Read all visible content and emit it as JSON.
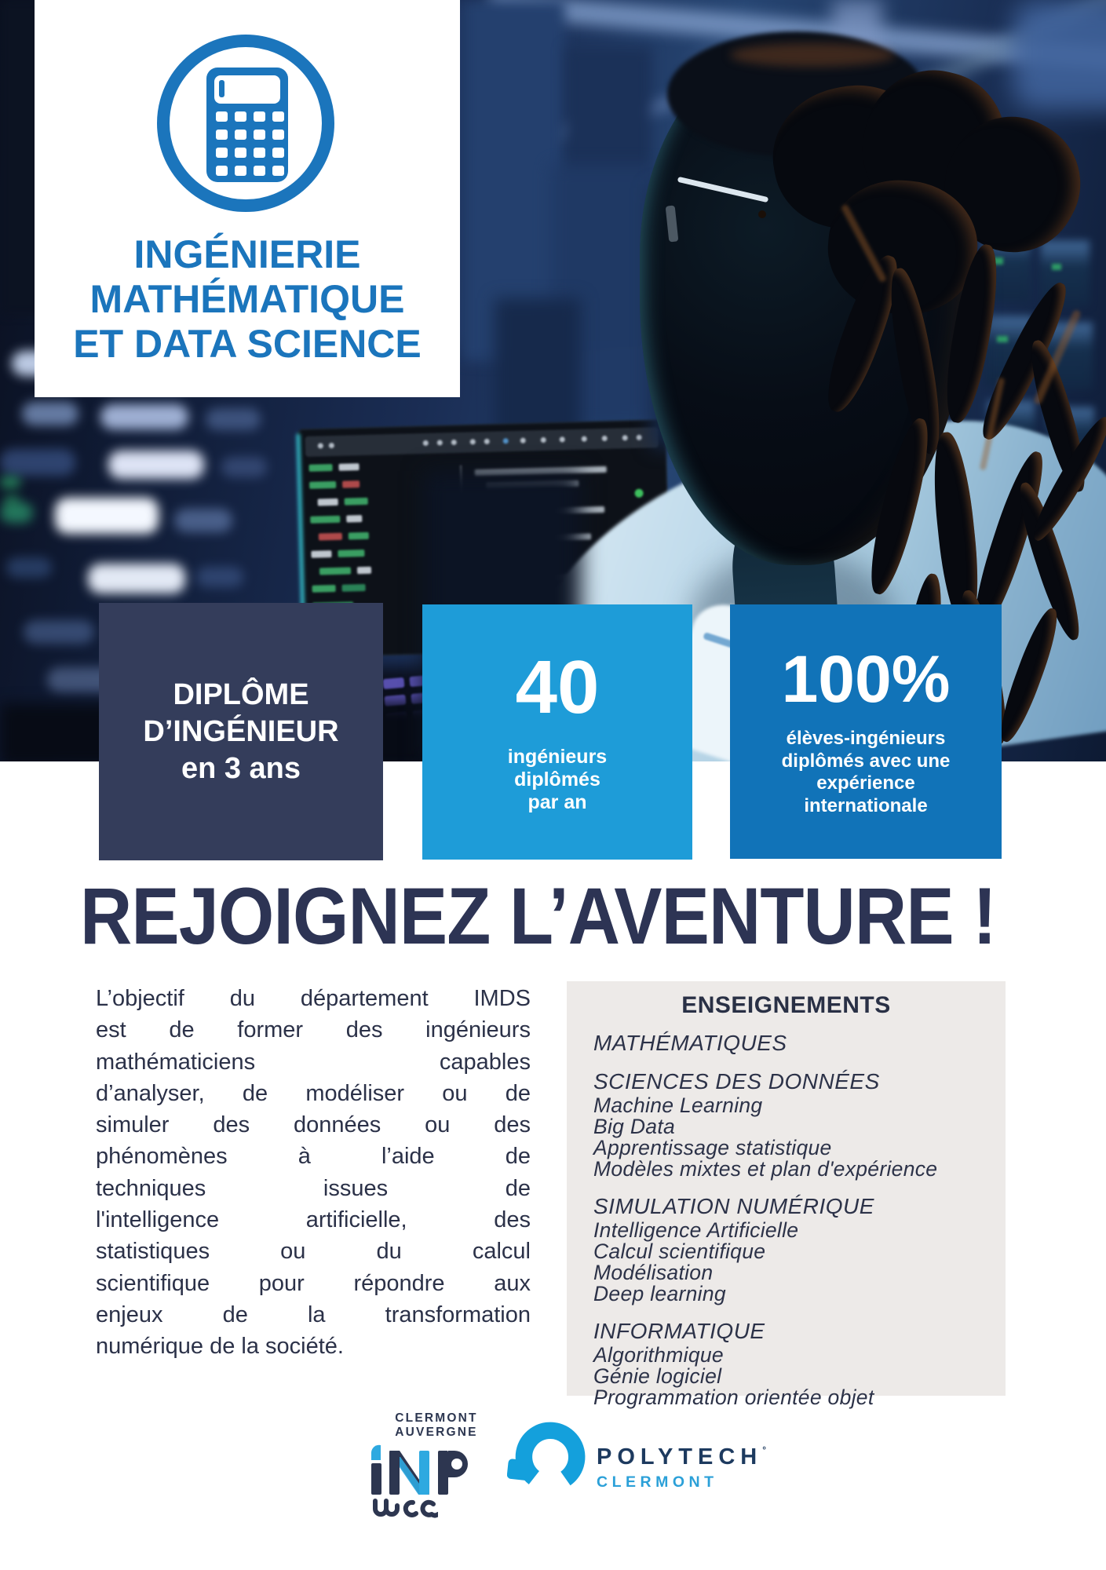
{
  "program_card": {
    "icon": "calculator-icon",
    "title_lines": [
      "INGÉNIERIE",
      "MATHÉMATIQUE",
      "ET DATA SCIENCE"
    ]
  },
  "stats": [
    {
      "lines": [
        "DIPLÔME",
        "D’INGÉNIEUR",
        "en 3 ans"
      ]
    },
    {
      "value": "40",
      "lines": [
        "ingénieurs",
        "diplômés",
        "par an"
      ]
    },
    {
      "value": "100%",
      "lines": [
        "élèves-ingénieurs",
        "diplômés avec une",
        "expérience",
        "internationale"
      ]
    }
  ],
  "headline": "REJOIGNEZ L’AVENTURE !",
  "intro": {
    "lines": [
      "L’objectif du département IMDS",
      "est de former des ingénieurs",
      "mathématiciens capables",
      "d’analyser, de modéliser ou de",
      "simuler des données ou des",
      "phénomènes à l’aide de",
      "techniques issues de",
      "l'intelligence artificielle, des",
      "statistiques ou du calcul",
      "scientifique pour répondre aux",
      "enjeux de la transformation",
      "numérique de la société."
    ]
  },
  "courses": {
    "title": "ENSEIGNEMENTS",
    "sections": [
      {
        "header": "MATHÉMATIQUES",
        "items": []
      },
      {
        "header": "SCIENCES DES DONNÉES",
        "items": [
          "Machine Learning",
          "Big Data",
          "Apprentissage statistique",
          "Modèles mixtes et plan d'expérience"
        ]
      },
      {
        "header": "SIMULATION NUMÉRIQUE",
        "items": [
          "Intelligence Artificielle",
          "Calcul scientifique",
          "Modélisation",
          "Deep learning"
        ]
      },
      {
        "header": "INFORMATIQUE",
        "items": [
          "Algorithmique",
          "Génie logiciel",
          "Programmation orientée objet"
        ]
      }
    ]
  },
  "logos": {
    "inp": {
      "region_line1": "CLERMONT",
      "region_line2": "AUVERGNE",
      "acronym": "INP",
      "script": "uca"
    },
    "polytech": {
      "name": "POLYTECH",
      "mark": "°",
      "city": "CLERMONT"
    }
  },
  "colors": {
    "primary_blue": "#1b75bc",
    "navy_box": "#343d5b",
    "light_blue_box": "#1e9cd8",
    "blue_box": "#1173b8",
    "headline_navy": "#2d3454",
    "text_navy": "#2b3148",
    "card_gray": "#edeae8",
    "polytech_blue": "#14a0dc",
    "inp_accent_blue": "#2ea9e0",
    "inp_navy": "#2d3650"
  }
}
